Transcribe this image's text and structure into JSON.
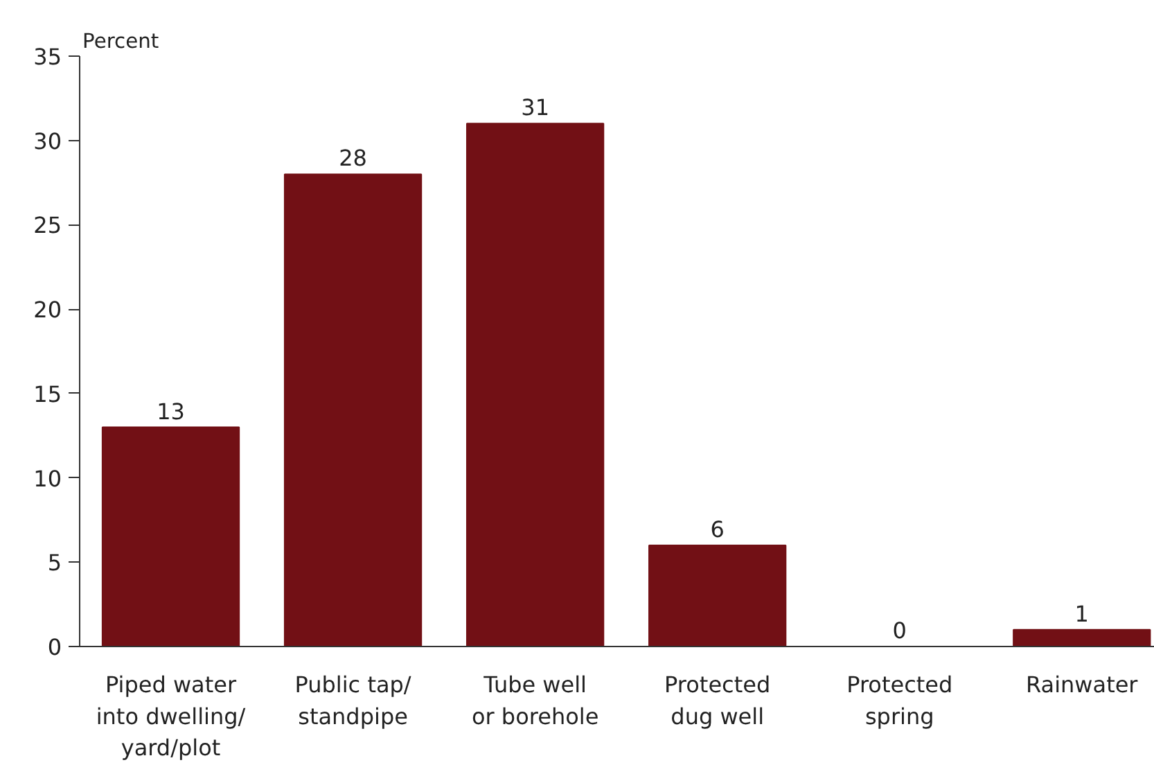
{
  "chart_data": {
    "type": "bar",
    "ylabel": "Percent",
    "categories": [
      "Piped water\ninto dwelling/\nyard/plot",
      "Public tap/\nstandpipe",
      "Tube well\nor borehole",
      "Protected\ndug well",
      "Protected\nspring",
      "Rainwater"
    ],
    "values": [
      13,
      28,
      31,
      6,
      0,
      1
    ],
    "color": "#721015",
    "ylim": [
      0,
      35
    ],
    "yticks": [
      0,
      5,
      10,
      15,
      20,
      25,
      30,
      35
    ],
    "grid": false,
    "data_labels": true
  }
}
